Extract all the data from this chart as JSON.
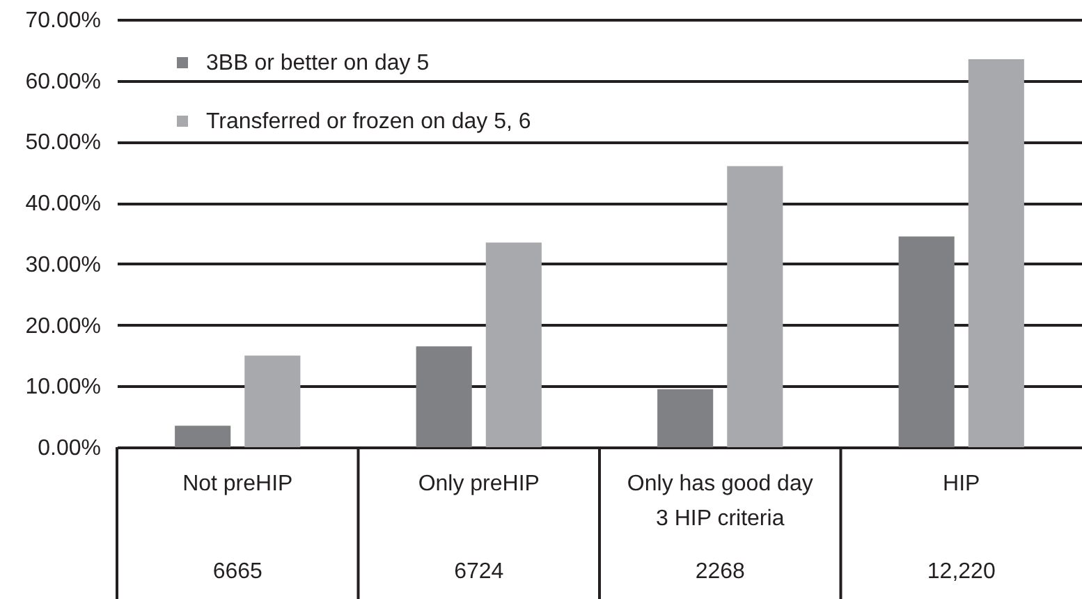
{
  "chart_data": {
    "type": "bar",
    "categories": [
      "Not preHIP",
      "Only preHIP",
      "Only has good day 3 HIP criteria",
      "HIP"
    ],
    "series": [
      {
        "name": "3BB or better on day 5",
        "color": "#808184",
        "values": [
          3.5,
          16.5,
          9.5,
          34.5
        ]
      },
      {
        "name": "Transferred or frozen on day 5, 6",
        "color": "#a8a9ac",
        "values": [
          15,
          33.5,
          46,
          63.5
        ]
      }
    ],
    "ylim": [
      0,
      70
    ],
    "yticks": [
      {
        "value": 0,
        "label": "0.00%"
      },
      {
        "value": 10,
        "label": "10.00%"
      },
      {
        "value": 20,
        "label": "20.00%"
      },
      {
        "value": 30,
        "label": "30.00%"
      },
      {
        "value": 40,
        "label": "40.00%"
      },
      {
        "value": 50,
        "label": "50.00%"
      },
      {
        "value": 60,
        "label": "60.00%"
      },
      {
        "value": 70,
        "label": "70.00%"
      }
    ],
    "grid": "y",
    "legend": "top left",
    "annotations": [
      "6665",
      "6724",
      "2268",
      "12,220"
    ]
  }
}
